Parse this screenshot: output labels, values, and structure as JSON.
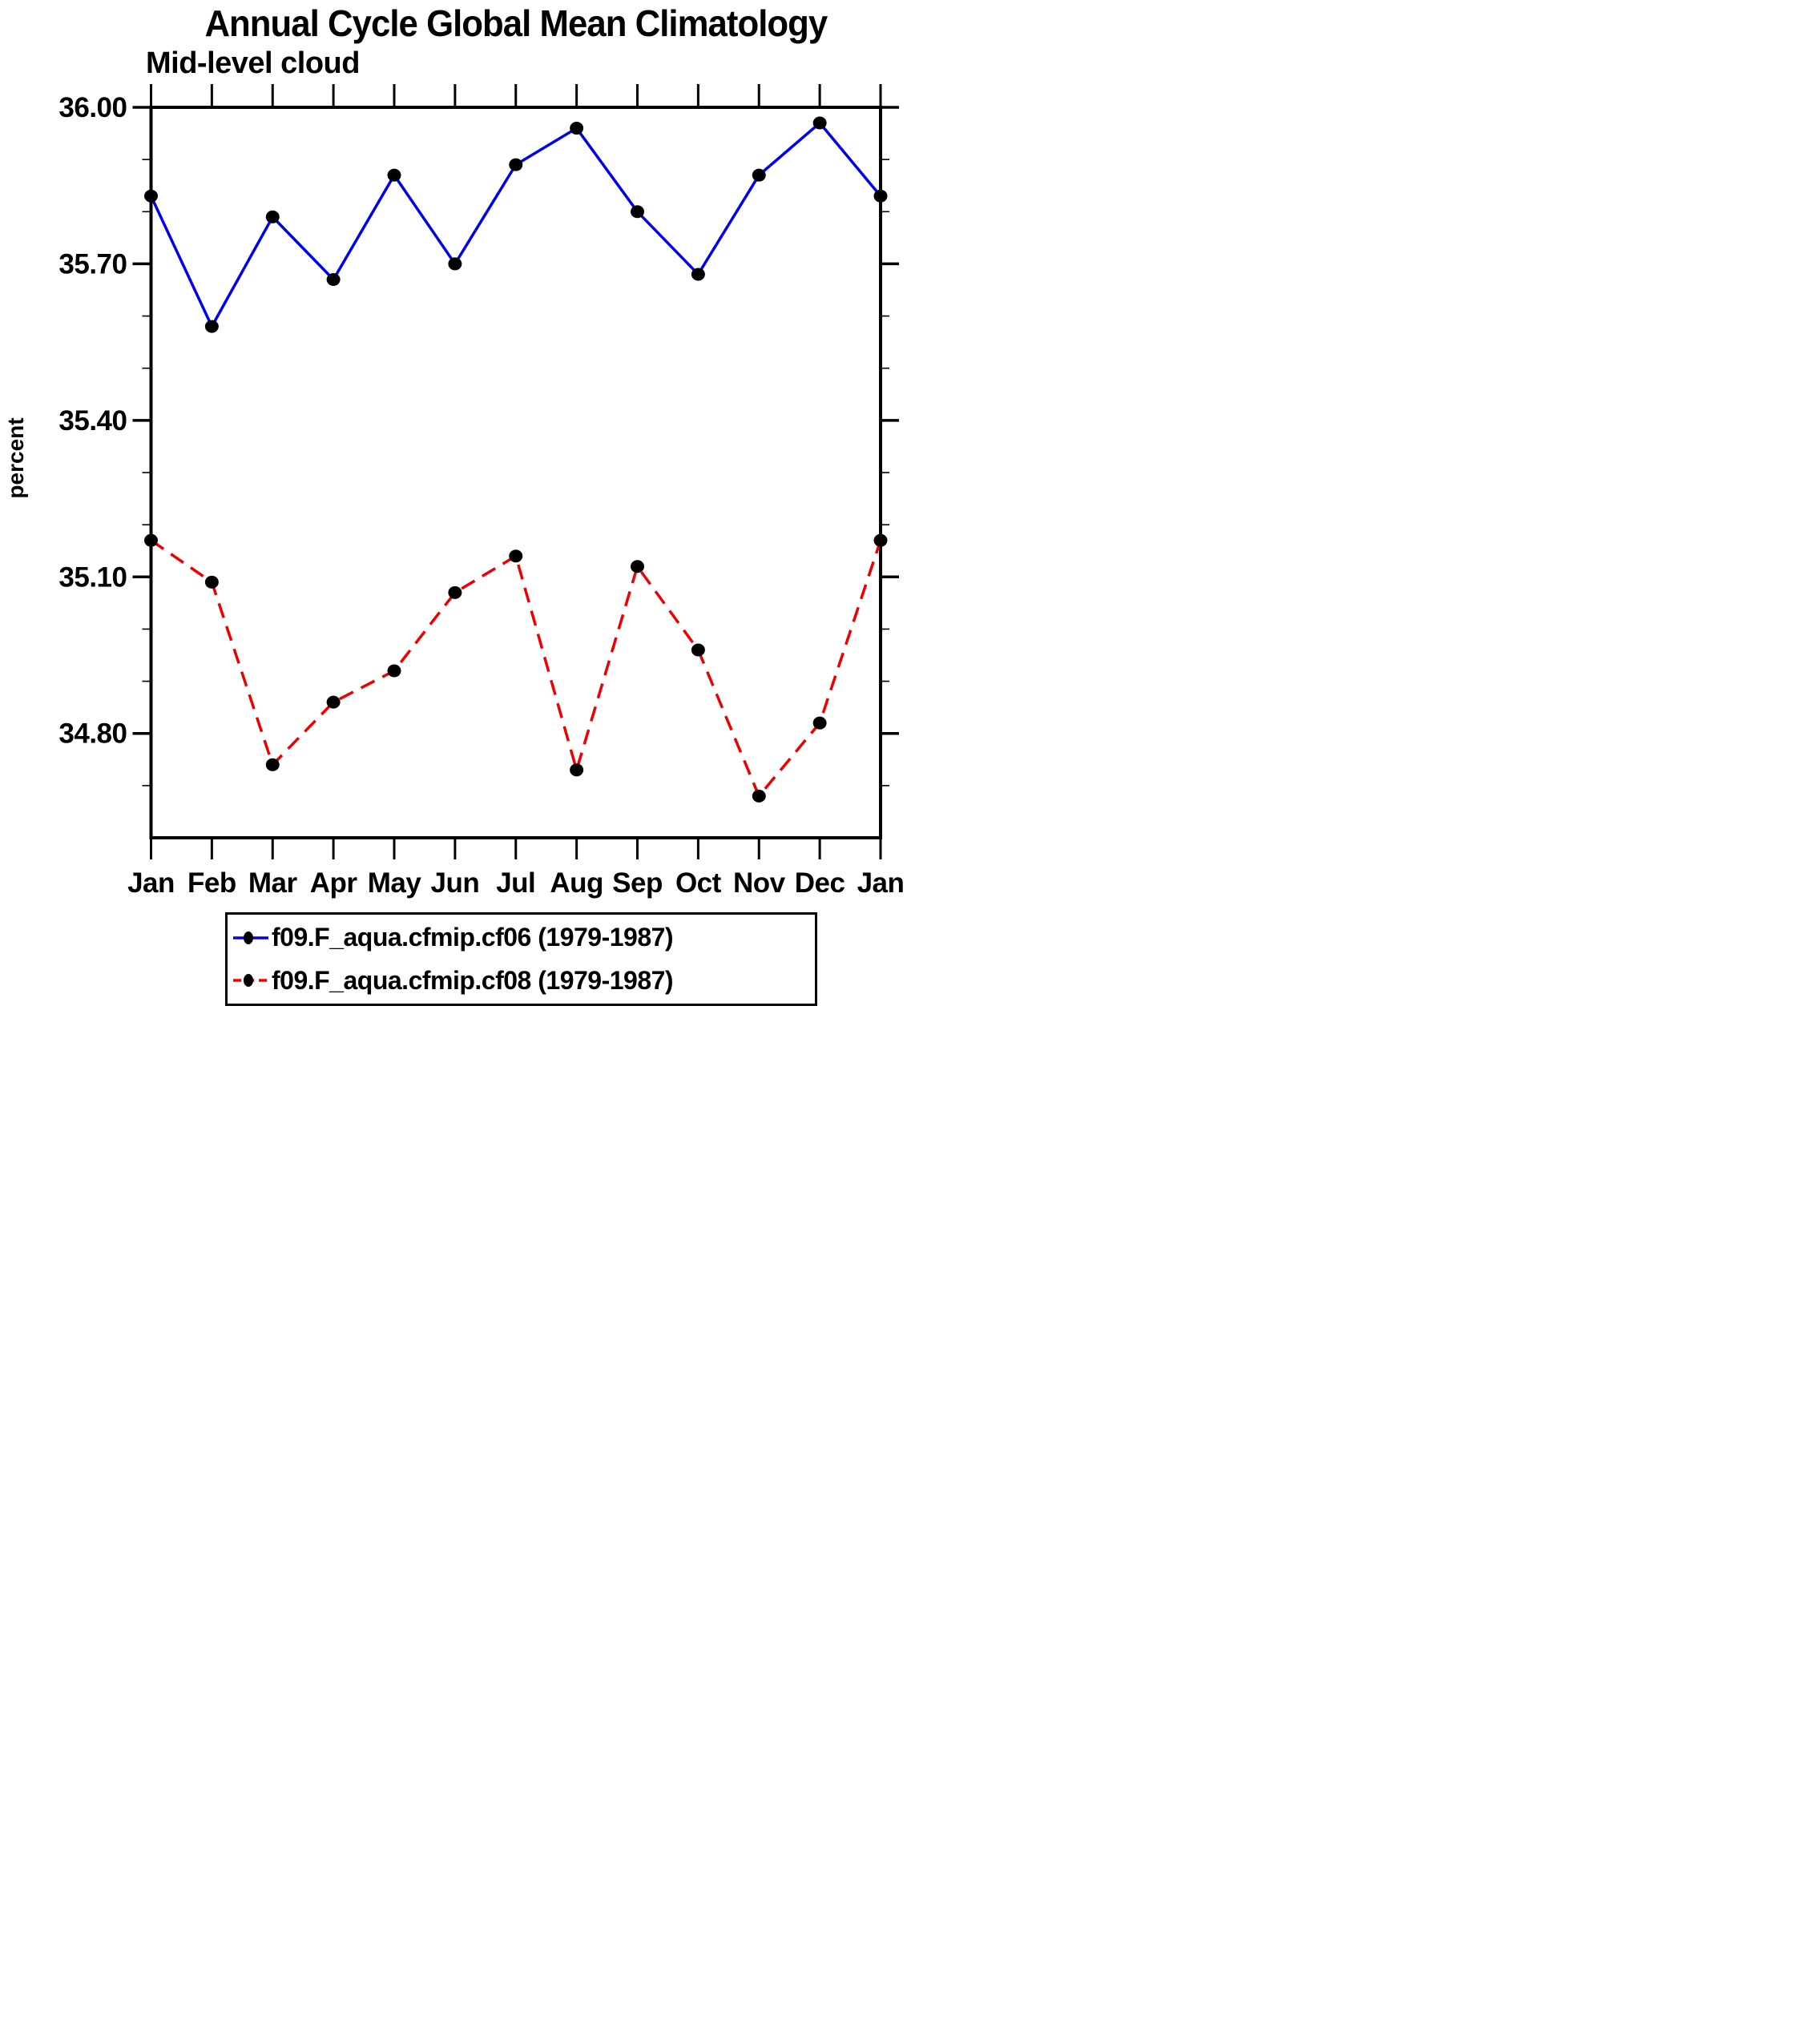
{
  "chart": {
    "title": "Annual Cycle Global Mean Climatology",
    "subtitle": "Mid-level cloud",
    "ylabel": "percent"
  },
  "chart_data": {
    "type": "line",
    "categories": [
      "Jan",
      "Feb",
      "Mar",
      "Apr",
      "May",
      "Jun",
      "Jul",
      "Aug",
      "Sep",
      "Oct",
      "Nov",
      "Dec",
      "Jan"
    ],
    "series": [
      {
        "name": "f09.F_aqua.cfmip.cf06 (1979-1987)",
        "color": "#0000ee",
        "line_style": "solid",
        "marker": "filled-circle",
        "marker_color": "#000000",
        "values": [
          35.83,
          35.58,
          35.79,
          35.67,
          35.87,
          35.7,
          35.89,
          35.96,
          35.8,
          35.68,
          35.87,
          35.97,
          35.83
        ]
      },
      {
        "name": "f09.F_aqua.cfmip.cf08 (1979-1987)",
        "color": "#ee0000",
        "line_style": "dashed",
        "marker": "filled-circle",
        "marker_color": "#000000",
        "values": [
          35.17,
          35.09,
          34.74,
          34.86,
          34.92,
          35.07,
          35.14,
          34.73,
          35.12,
          34.96,
          34.68,
          34.82,
          35.17
        ]
      }
    ],
    "title": "Annual Cycle Global Mean Climatology",
    "subtitle": "Mid-level cloud",
    "xlabel": "",
    "ylabel": "percent",
    "ylim": [
      34.6,
      36.0
    ],
    "yticks_major": {
      "values": [
        36.0,
        35.7,
        35.4,
        35.1,
        34.8
      ],
      "labels": [
        "36.00",
        "35.70",
        "35.40",
        "35.10",
        "34.80"
      ]
    },
    "yticks_minor": [
      35.9,
      35.8,
      35.6,
      35.5,
      35.3,
      35.2,
      35.0,
      34.9,
      34.7
    ],
    "grid": false,
    "frame": true,
    "tick_direction": "out",
    "legend_position": "bottom"
  }
}
